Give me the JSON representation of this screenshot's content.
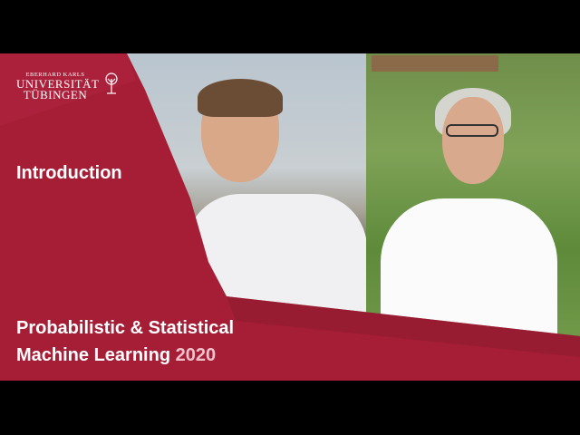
{
  "logo": {
    "line1": "EBERHARD KARLS",
    "line2": "UNIVERSITÄT",
    "line3": "TÜBINGEN"
  },
  "section_label": "Introduction",
  "course": {
    "title_line1": "Probabilistic & Statistical",
    "title_line2_prefix": "Machine Learning",
    "year": "2020"
  },
  "colors": {
    "brand_red": "#a51e36",
    "year_pink": "#f1c1cc"
  },
  "icons": [
    "tree-icon"
  ]
}
